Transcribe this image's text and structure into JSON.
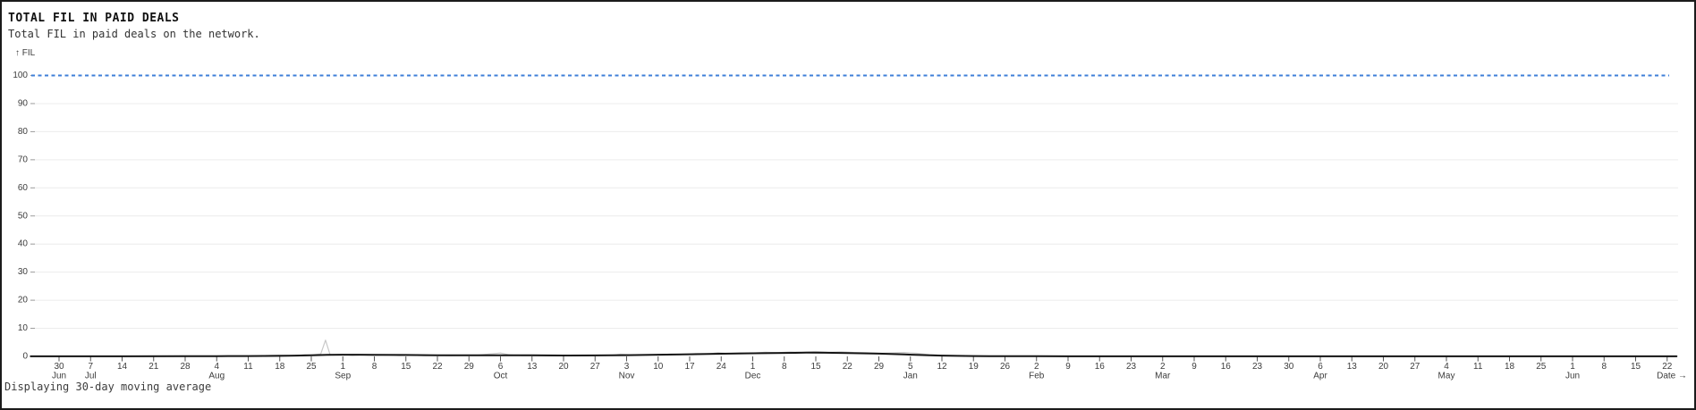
{
  "page": {
    "title": "TOTAL FIL IN PAID DEALS",
    "subtitle": "Total FIL in paid deals on the network.",
    "footer": "Displaying 30-day moving average"
  },
  "chart_data": {
    "type": "line",
    "title": "TOTAL FIL IN PAID DEALS",
    "subtitle": "Total FIL in paid deals on the network.",
    "yaxis_label": "↑ FIL",
    "xaxis_label": "Date →",
    "ylabel": "FIL",
    "xlabel": "Date",
    "ylim": [
      0,
      100
    ],
    "yticks": [
      0,
      10,
      20,
      30,
      40,
      50,
      60,
      70,
      80,
      90,
      100
    ],
    "grid": true,
    "legend": "none",
    "note": "Displaying 30-day moving average",
    "colors": {
      "reference": "#3e7fd8",
      "daily": "#c8c8c8",
      "moving_average": "#141414",
      "gridline": "#ececec",
      "tick": "#9a9a9a"
    },
    "x_ticks": [
      {
        "day": "30",
        "month": "Jun"
      },
      {
        "day": "7",
        "month": "Jul"
      },
      {
        "day": "14"
      },
      {
        "day": "21"
      },
      {
        "day": "28"
      },
      {
        "day": "4",
        "month": "Aug"
      },
      {
        "day": "11"
      },
      {
        "day": "18"
      },
      {
        "day": "25"
      },
      {
        "day": "1",
        "month": "Sep"
      },
      {
        "day": "8"
      },
      {
        "day": "15"
      },
      {
        "day": "22"
      },
      {
        "day": "29"
      },
      {
        "day": "6",
        "month": "Oct"
      },
      {
        "day": "13"
      },
      {
        "day": "20"
      },
      {
        "day": "27"
      },
      {
        "day": "3",
        "month": "Nov"
      },
      {
        "day": "10"
      },
      {
        "day": "17"
      },
      {
        "day": "24"
      },
      {
        "day": "1",
        "month": "Dec"
      },
      {
        "day": "8"
      },
      {
        "day": "15"
      },
      {
        "day": "22"
      },
      {
        "day": "29"
      },
      {
        "day": "5",
        "month": "Jan"
      },
      {
        "day": "12"
      },
      {
        "day": "19"
      },
      {
        "day": "26"
      },
      {
        "day": "2",
        "month": "Feb"
      },
      {
        "day": "9"
      },
      {
        "day": "16"
      },
      {
        "day": "23"
      },
      {
        "day": "2",
        "month": "Mar"
      },
      {
        "day": "9"
      },
      {
        "day": "16"
      },
      {
        "day": "23"
      },
      {
        "day": "30"
      },
      {
        "day": "6",
        "month": "Apr"
      },
      {
        "day": "13"
      },
      {
        "day": "20"
      },
      {
        "day": "27"
      },
      {
        "day": "4",
        "month": "May"
      },
      {
        "day": "11"
      },
      {
        "day": "18"
      },
      {
        "day": "25"
      },
      {
        "day": "1",
        "month": "Jun"
      },
      {
        "day": "8"
      },
      {
        "day": "15"
      },
      {
        "day": "22"
      }
    ],
    "reference_line": {
      "name": "reference-100",
      "y": 100,
      "style": "dashed"
    },
    "series": [
      {
        "name": "daily",
        "color_key": "daily",
        "width": 1.2,
        "points": [
          [
            -0.9,
            0.05
          ],
          [
            0,
            0.05
          ],
          [
            2,
            0.05
          ],
          [
            4,
            0.06
          ],
          [
            5,
            0.1
          ],
          [
            6,
            0.12
          ],
          [
            6.5,
            0.3
          ],
          [
            7,
            0.45
          ],
          [
            7.4,
            0.25
          ],
          [
            7.8,
            0.6
          ],
          [
            8,
            0.5
          ],
          [
            8.3,
            0.9
          ],
          [
            8.45,
            5.8
          ],
          [
            8.6,
            0.5
          ],
          [
            9,
            0.7
          ],
          [
            9.3,
            0.35
          ],
          [
            9.6,
            0.55
          ],
          [
            10,
            0.35
          ],
          [
            10.4,
            0.5
          ],
          [
            10.8,
            0.3
          ],
          [
            11.2,
            0.45
          ],
          [
            11.6,
            0.3
          ],
          [
            12,
            0.4
          ],
          [
            12.4,
            0.3
          ],
          [
            12.8,
            0.35
          ],
          [
            13.2,
            0.35
          ],
          [
            13.6,
            0.8
          ],
          [
            14,
            1.2
          ],
          [
            14.3,
            0.5
          ],
          [
            14.7,
            0.3
          ],
          [
            15,
            0.25
          ],
          [
            15.5,
            0.2
          ],
          [
            16,
            0.25
          ],
          [
            16.5,
            0.25
          ],
          [
            17,
            0.3
          ],
          [
            17.5,
            0.35
          ],
          [
            17.8,
            0.8
          ],
          [
            18.2,
            0.55
          ],
          [
            18.6,
            0.5
          ],
          [
            19,
            0.65
          ],
          [
            19.4,
            0.8
          ],
          [
            19.8,
            0.7
          ],
          [
            20.2,
            1.0
          ],
          [
            20.6,
            0.9
          ],
          [
            20.9,
            1.3
          ],
          [
            21.2,
            1.0
          ],
          [
            21.6,
            1.25
          ],
          [
            22,
            1.15
          ],
          [
            22.4,
            1.45
          ],
          [
            22.8,
            1.3
          ],
          [
            23.2,
            1.6
          ],
          [
            23.6,
            1.45
          ],
          [
            24,
            1.75
          ],
          [
            24.4,
            1.5
          ],
          [
            24.8,
            1.65
          ],
          [
            25.2,
            1.4
          ],
          [
            25.6,
            1.3
          ],
          [
            26,
            1.1
          ],
          [
            26.4,
            1.25
          ],
          [
            26.8,
            1.4
          ],
          [
            27.2,
            1.1
          ],
          [
            27.6,
            0.6
          ],
          [
            28,
            0.4
          ],
          [
            28.5,
            0.3
          ],
          [
            29,
            0.2
          ],
          [
            29.5,
            0.12
          ],
          [
            30,
            0.1
          ],
          [
            31,
            0.06
          ],
          [
            32,
            0.05
          ],
          [
            34,
            0.05
          ],
          [
            36,
            0.05
          ],
          [
            38,
            0.05
          ],
          [
            40,
            0.05
          ],
          [
            42,
            0.05
          ],
          [
            44,
            0.05
          ],
          [
            46,
            0.05
          ],
          [
            48,
            0.05
          ],
          [
            50,
            0.05
          ],
          [
            51.3,
            0.05
          ]
        ]
      },
      {
        "name": "30-day moving average",
        "color_key": "moving_average",
        "width": 2,
        "points": [
          [
            -0.9,
            0.04
          ],
          [
            0,
            0.04
          ],
          [
            2,
            0.04
          ],
          [
            4,
            0.05
          ],
          [
            5,
            0.08
          ],
          [
            6,
            0.12
          ],
          [
            7,
            0.2
          ],
          [
            7.5,
            0.3
          ],
          [
            8,
            0.4
          ],
          [
            8.5,
            0.55
          ],
          [
            9,
            0.6
          ],
          [
            9.5,
            0.62
          ],
          [
            10,
            0.58
          ],
          [
            11,
            0.5
          ],
          [
            12,
            0.42
          ],
          [
            13,
            0.4
          ],
          [
            14,
            0.42
          ],
          [
            15,
            0.38
          ],
          [
            16,
            0.32
          ],
          [
            17,
            0.35
          ],
          [
            18,
            0.45
          ],
          [
            19,
            0.6
          ],
          [
            20,
            0.75
          ],
          [
            21,
            0.95
          ],
          [
            22,
            1.1
          ],
          [
            23,
            1.25
          ],
          [
            23.7,
            1.35
          ],
          [
            24.3,
            1.3
          ],
          [
            25,
            1.2
          ],
          [
            26,
            1.0
          ],
          [
            26.8,
            0.7
          ],
          [
            27.5,
            0.45
          ],
          [
            28,
            0.3
          ],
          [
            28.5,
            0.2
          ],
          [
            29,
            0.13
          ],
          [
            29.5,
            0.1
          ],
          [
            30,
            0.08
          ],
          [
            31,
            0.05
          ],
          [
            32,
            0.04
          ],
          [
            34,
            0.04
          ],
          [
            36,
            0.04
          ],
          [
            38,
            0.04
          ],
          [
            40,
            0.04
          ],
          [
            42,
            0.04
          ],
          [
            44,
            0.04
          ],
          [
            46,
            0.04
          ],
          [
            48,
            0.04
          ],
          [
            50,
            0.04
          ],
          [
            51.3,
            0.04
          ]
        ]
      }
    ]
  }
}
